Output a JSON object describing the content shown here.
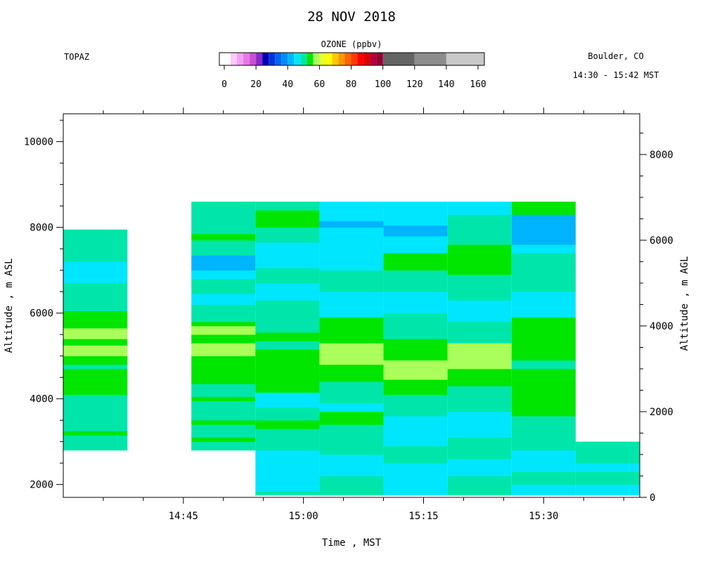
{
  "header": {
    "title": "28 NOV 2018",
    "instrument": "TOPAZ",
    "location": "Boulder, CO",
    "time_range": "14:30 - 15:42 MST",
    "colorbar_label": "OZONE (ppbv)"
  },
  "colorbar": {
    "ticks": [
      "0",
      "20",
      "40",
      "60",
      "80",
      "100",
      "120",
      "140",
      "160"
    ],
    "tick_values": [
      0,
      20,
      40,
      60,
      80,
      100,
      120,
      140,
      160
    ],
    "segments": [
      {
        "from": 0,
        "to": 4,
        "color": "#ffffff"
      },
      {
        "from": 4,
        "to": 8,
        "color": "#ffc8ff"
      },
      {
        "from": 8,
        "to": 12,
        "color": "#f5a0f5"
      },
      {
        "from": 12,
        "to": 16,
        "color": "#e678e6"
      },
      {
        "from": 16,
        "to": 20,
        "color": "#c850d2"
      },
      {
        "from": 20,
        "to": 24,
        "color": "#8c28c8"
      },
      {
        "from": 24,
        "to": 28,
        "color": "#0000b4"
      },
      {
        "from": 28,
        "to": 32,
        "color": "#0032dc"
      },
      {
        "from": 32,
        "to": 36,
        "color": "#0064f0"
      },
      {
        "from": 36,
        "to": 40,
        "color": "#008cff"
      },
      {
        "from": 40,
        "to": 44,
        "color": "#00b4ff"
      },
      {
        "from": 44,
        "to": 48,
        "color": "#00e6ff"
      },
      {
        "from": 48,
        "to": 52,
        "color": "#00e6aa"
      },
      {
        "from": 52,
        "to": 56,
        "color": "#00e600"
      },
      {
        "from": 56,
        "to": 60,
        "color": "#aaff5a"
      },
      {
        "from": 60,
        "to": 64,
        "color": "#e6ff32"
      },
      {
        "from": 64,
        "to": 68,
        "color": "#ffff00"
      },
      {
        "from": 68,
        "to": 72,
        "color": "#ffc800"
      },
      {
        "from": 72,
        "to": 76,
        "color": "#ff9600"
      },
      {
        "from": 76,
        "to": 80,
        "color": "#ff6400"
      },
      {
        "from": 80,
        "to": 84,
        "color": "#ff3c00"
      },
      {
        "from": 84,
        "to": 88,
        "color": "#ff0000"
      },
      {
        "from": 88,
        "to": 92,
        "color": "#dc0000"
      },
      {
        "from": 92,
        "to": 96,
        "color": "#b4003c"
      },
      {
        "from": 96,
        "to": 100,
        "color": "#960032"
      },
      {
        "from": 100,
        "to": 120,
        "color": "#646464"
      },
      {
        "from": 120,
        "to": 140,
        "color": "#8c8c8c"
      },
      {
        "from": 140,
        "to": 160,
        "color": "#c8c8c8"
      }
    ]
  },
  "chart_data": {
    "type": "heatmap",
    "title": "28 NOV 2018",
    "xlabel": "Time , MST",
    "ylabel_left": "Altitude , m ASL",
    "ylabel_right": "Altitude , m AGL",
    "x_unit": "minutes after 14:30 MST",
    "xlim": [
      0,
      72
    ],
    "ylim": [
      1700,
      10650
    ],
    "ylim_right": [
      0,
      8950
    ],
    "x_ticks": [
      "14:45",
      "15:00",
      "15:15",
      "15:30"
    ],
    "x_tick_values": [
      15,
      30,
      45,
      60
    ],
    "y_ticks_left": [
      "2000",
      "4000",
      "6000",
      "8000",
      "10000"
    ],
    "y_tick_values_left": [
      2000,
      4000,
      6000,
      8000,
      10000
    ],
    "y_ticks_right": [
      "0",
      "2000",
      "4000",
      "6000",
      "8000"
    ],
    "y_tick_values_right": [
      0,
      2000,
      4000,
      6000,
      8000
    ],
    "columns": [
      {
        "t0": 0,
        "t1": 8,
        "bands": [
          [
            2800,
            3150,
            50
          ],
          [
            3150,
            3250,
            53
          ],
          [
            3250,
            3350,
            50
          ],
          [
            3350,
            4100,
            50
          ],
          [
            4100,
            4500,
            53
          ],
          [
            4500,
            4700,
            53
          ],
          [
            4700,
            4800,
            50
          ],
          [
            4800,
            5000,
            53
          ],
          [
            5000,
            5250,
            57
          ],
          [
            5250,
            5400,
            53
          ],
          [
            5400,
            5650,
            57
          ],
          [
            5650,
            6050,
            53
          ],
          [
            6050,
            6250,
            50
          ],
          [
            6250,
            6700,
            50
          ],
          [
            6700,
            6800,
            45
          ],
          [
            6800,
            7200,
            45
          ],
          [
            7200,
            7450,
            50
          ],
          [
            7450,
            7650,
            50
          ],
          [
            7650,
            7950,
            50
          ]
        ]
      },
      {
        "t0": 16,
        "t1": 24,
        "bands": [
          [
            2800,
            3000,
            50
          ],
          [
            3000,
            3100,
            53
          ],
          [
            3100,
            3400,
            50
          ],
          [
            3400,
            3500,
            53
          ],
          [
            3500,
            3950,
            50
          ],
          [
            3950,
            4050,
            53
          ],
          [
            4050,
            4350,
            50
          ],
          [
            4350,
            5000,
            53
          ],
          [
            5000,
            5300,
            57
          ],
          [
            5300,
            5500,
            53
          ],
          [
            5500,
            5700,
            57
          ],
          [
            5700,
            5800,
            53
          ],
          [
            5800,
            6200,
            50
          ],
          [
            6200,
            6450,
            45
          ],
          [
            6450,
            6800,
            50
          ],
          [
            6800,
            7000,
            45
          ],
          [
            7000,
            7350,
            40
          ],
          [
            7350,
            7700,
            50
          ],
          [
            7700,
            7850,
            53
          ],
          [
            7850,
            8250,
            50
          ],
          [
            8250,
            8450,
            50
          ],
          [
            8450,
            8600,
            50
          ]
        ]
      },
      {
        "t0": 24,
        "t1": 32,
        "bands": [
          [
            1750,
            1850,
            50
          ],
          [
            1850,
            2800,
            45
          ],
          [
            2800,
            3300,
            50
          ],
          [
            3300,
            3500,
            53
          ],
          [
            3500,
            3800,
            50
          ],
          [
            3800,
            4150,
            45
          ],
          [
            4150,
            4600,
            53
          ],
          [
            4600,
            5150,
            53
          ],
          [
            5150,
            5350,
            50
          ],
          [
            5350,
            5550,
            53
          ],
          [
            5550,
            5800,
            50
          ],
          [
            5800,
            6300,
            50
          ],
          [
            6300,
            6700,
            45
          ],
          [
            6700,
            7050,
            50
          ],
          [
            7050,
            7650,
            45
          ],
          [
            7650,
            8000,
            50
          ],
          [
            8000,
            8400,
            53
          ],
          [
            8400,
            8600,
            50
          ]
        ]
      },
      {
        "t0": 32,
        "t1": 40,
        "bands": [
          [
            1750,
            2200,
            50
          ],
          [
            2200,
            2700,
            45
          ],
          [
            2700,
            3400,
            50
          ],
          [
            3400,
            3700,
            53
          ],
          [
            3700,
            3900,
            45
          ],
          [
            3900,
            4400,
            50
          ],
          [
            4400,
            4800,
            53
          ],
          [
            4800,
            5300,
            57
          ],
          [
            5300,
            5900,
            53
          ],
          [
            5900,
            6500,
            45
          ],
          [
            6500,
            7000,
            50
          ],
          [
            7000,
            7400,
            45
          ],
          [
            7400,
            8000,
            45
          ],
          [
            8000,
            8150,
            40
          ],
          [
            8150,
            8600,
            45
          ]
        ]
      },
      {
        "t0": 40,
        "t1": 48,
        "bands": [
          [
            1750,
            2500,
            45
          ],
          [
            2500,
            2900,
            50
          ],
          [
            2900,
            3600,
            45
          ],
          [
            3600,
            4100,
            50
          ],
          [
            4100,
            4450,
            53
          ],
          [
            4450,
            4900,
            57
          ],
          [
            4900,
            5400,
            53
          ],
          [
            5400,
            6000,
            50
          ],
          [
            6000,
            6500,
            45
          ],
          [
            6500,
            7000,
            50
          ],
          [
            7000,
            7400,
            53
          ],
          [
            7400,
            7800,
            45
          ],
          [
            7800,
            8050,
            40
          ],
          [
            8050,
            8600,
            45
          ]
        ]
      },
      {
        "t0": 48,
        "t1": 56,
        "bands": [
          [
            1750,
            2200,
            50
          ],
          [
            2200,
            2600,
            45
          ],
          [
            2600,
            3100,
            50
          ],
          [
            3100,
            3700,
            45
          ],
          [
            3700,
            4300,
            50
          ],
          [
            4300,
            4700,
            53
          ],
          [
            4700,
            5300,
            57
          ],
          [
            5300,
            5800,
            50
          ],
          [
            5800,
            6300,
            45
          ],
          [
            6300,
            6900,
            50
          ],
          [
            6900,
            7600,
            53
          ],
          [
            7600,
            8000,
            50
          ],
          [
            8000,
            8300,
            50
          ],
          [
            8300,
            8600,
            45
          ]
        ]
      },
      {
        "t0": 56,
        "t1": 64,
        "bands": [
          [
            1750,
            2000,
            45
          ],
          [
            2000,
            2300,
            50
          ],
          [
            2300,
            2800,
            45
          ],
          [
            2800,
            3600,
            50
          ],
          [
            3600,
            4000,
            53
          ],
          [
            4000,
            4700,
            53
          ],
          [
            4700,
            4900,
            50
          ],
          [
            4900,
            5900,
            53
          ],
          [
            5900,
            6500,
            45
          ],
          [
            6500,
            7000,
            50
          ],
          [
            7000,
            7400,
            50
          ],
          [
            7400,
            7600,
            45
          ],
          [
            7600,
            8300,
            40
          ],
          [
            8300,
            8600,
            53
          ]
        ]
      },
      {
        "t0": 64,
        "t1": 72,
        "bands": [
          [
            1750,
            2000,
            45
          ],
          [
            2000,
            2300,
            50
          ],
          [
            2300,
            2500,
            45
          ],
          [
            2500,
            3000,
            50
          ]
        ]
      }
    ]
  }
}
